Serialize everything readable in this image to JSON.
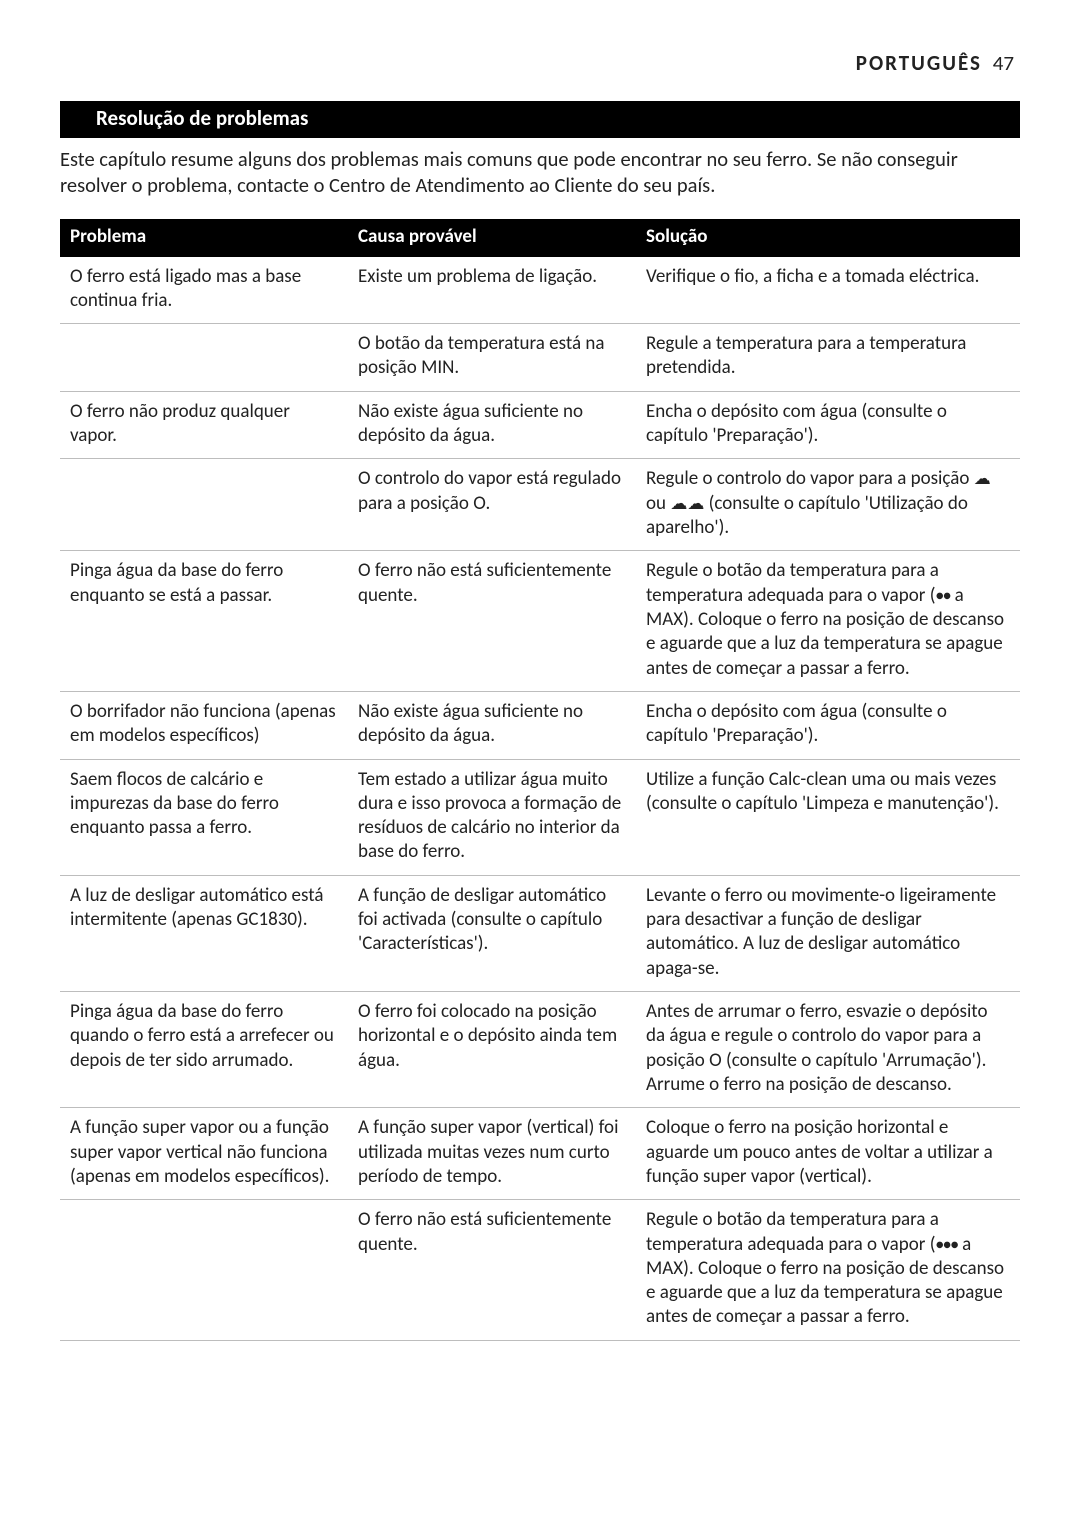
{
  "header": {
    "language": "PORTUGUÊS",
    "page": "47"
  },
  "section": {
    "title": "Resolução de problemas"
  },
  "intro": "Este capítulo resume alguns dos problemas mais comuns que pode encontrar no seu ferro. Se não conseguir resolver o problema, contacte o Centro de Atendimento ao Cliente do seu país.",
  "table": {
    "headers": {
      "c1": "Problema",
      "c2": "Causa provável",
      "c3": "Solução"
    },
    "rows": [
      {
        "problem": "O ferro está ligado mas a base continua fria.",
        "cause": "Existe um problema de ligação.",
        "solution": "Verifique o fio, a ficha e a tomada eléctrica."
      },
      {
        "problem": "",
        "cause": "O botão da temperatura está na posição MIN.",
        "solution": "Regule a temperatura para a temperatura pretendida."
      },
      {
        "problem": "O ferro não produz qualquer vapor.",
        "cause": "Não existe água suficiente no depósito da água.",
        "solution": "Encha o depósito com água (consulte o capítulo 'Preparação')."
      },
      {
        "problem": "",
        "cause": "O controlo do vapor está regulado para a posição O.",
        "solution_html": "Regule o controlo do vapor para a posição <span class='sym'>☁</span> ou <span class='sym'>☁☁</span> (consulte o capítulo 'Utilização do aparelho')."
      },
      {
        "problem": "Pinga água da base do ferro enquanto se está a passar.",
        "cause": "O ferro não está suficientemente quente.",
        "solution_html": "Regule o botão da temperatura para a temperatura adequada para o vapor (<span class='dot'>●●</span> a MAX). Coloque o ferro na posição de descanso e aguarde que a luz da temperatura se apague antes de começar a passar a ferro."
      },
      {
        "problem": "O borrifador não funciona (apenas em modelos específicos)",
        "cause": "Não existe água suficiente no depósito da água.",
        "solution": "Encha o depósito com água (consulte o capítulo 'Preparação')."
      },
      {
        "problem": "Saem flocos de calcário e impurezas da base do ferro enquanto passa a ferro.",
        "cause": "Tem estado a utilizar água muito dura e isso provoca a formação de resíduos de calcário no interior da base do ferro.",
        "solution": "Utilize a função Calc-clean uma ou mais vezes (consulte o capítulo 'Limpeza e manutenção')."
      },
      {
        "problem": "A luz de desligar automático está intermitente (apenas GC1830).",
        "cause": "A função de desligar automático foi activada (consulte o capítulo 'Características').",
        "solution": "Levante o ferro ou movimente-o ligeiramente para desactivar a função de desligar automático. A luz de desligar automático apaga-se."
      },
      {
        "problem": "Pinga água da base do ferro quando o ferro está a arrefecer ou depois de ter sido arrumado.",
        "cause": "O ferro foi colocado na posição horizontal e o depósito ainda tem água.",
        "solution": "Antes de arrumar o ferro, esvazie o depósito da água e regule o controlo do vapor para a posição O (consulte o capítulo 'Arrumação'). Arrume o ferro na posição de descanso."
      },
      {
        "problem": "A função super vapor ou a função super vapor  vertical não funciona (apenas em modelos específicos).",
        "cause": "A função super vapor  (vertical) foi utilizada muitas vezes num curto período de tempo.",
        "solution": "Coloque o ferro na posição horizontal e aguarde um pouco antes de voltar a utilizar a função super vapor  (vertical)."
      },
      {
        "problem": "",
        "cause": "O ferro não está suficientemente quente.",
        "solution_html": "Regule o botão da temperatura para a temperatura adequada para o vapor (<span class='dot'>●●●</span> a MAX). Coloque o ferro na posição de descanso e aguarde que a luz da temperatura se apague antes de começar a passar a ferro."
      }
    ]
  }
}
